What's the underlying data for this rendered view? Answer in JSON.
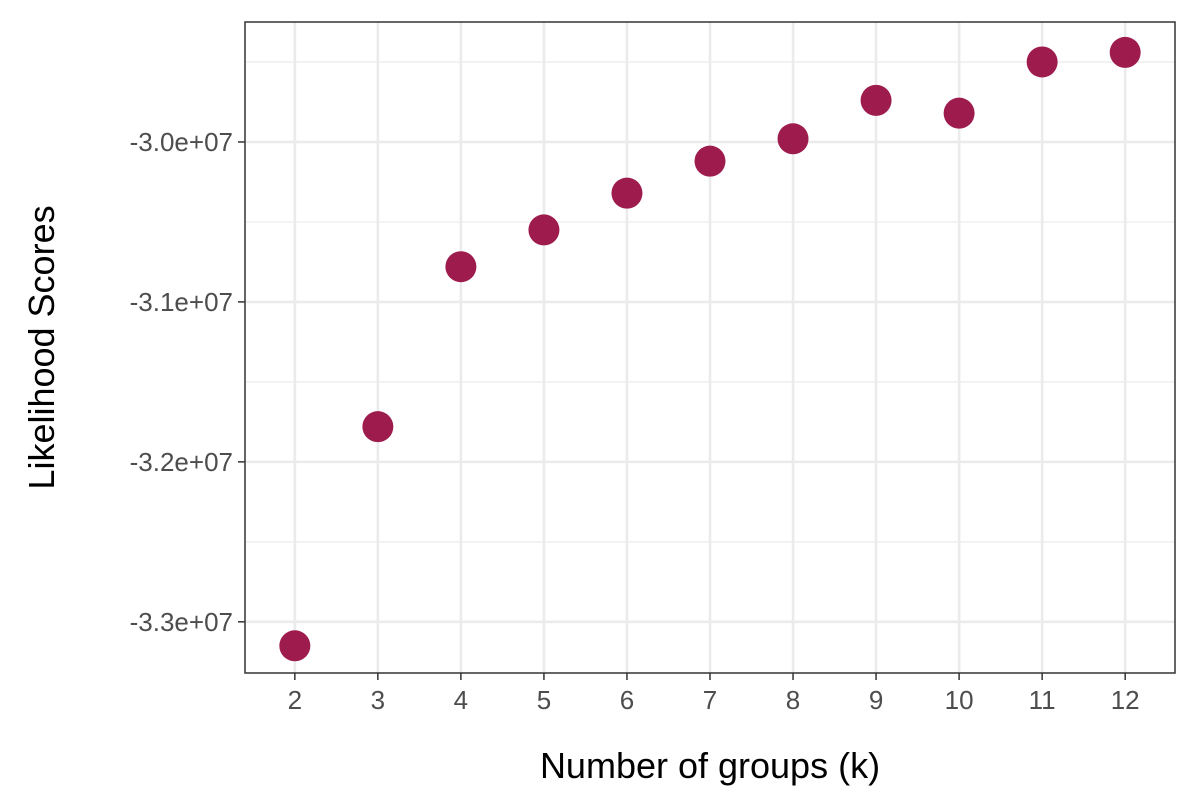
{
  "chart_data": {
    "type": "scatter",
    "title": "",
    "xlabel": "Number of groups (k)",
    "ylabel": "Likelihood Scores",
    "x": [
      2,
      3,
      4,
      5,
      6,
      7,
      8,
      9,
      10,
      11,
      12
    ],
    "y": [
      -33150000,
      -31780000,
      -30780000,
      -30550000,
      -30320000,
      -30120000,
      -29980000,
      -29740000,
      -29820000,
      -29500000,
      -29440000
    ],
    "xticks": [
      "2",
      "3",
      "4",
      "5",
      "6",
      "7",
      "8",
      "9",
      "10",
      "11",
      "12"
    ],
    "yticks": [
      {
        "value": -33000000,
        "label": "-3.3e+07"
      },
      {
        "value": -32000000,
        "label": "-3.2e+07"
      },
      {
        "value": -31000000,
        "label": "-3.1e+07"
      },
      {
        "value": -30000000,
        "label": "-3.0e+07"
      }
    ],
    "xlim": [
      1.4,
      12.6
    ],
    "ylim": [
      -33320000,
      -29250000
    ],
    "grid": true,
    "legend": "none",
    "colors": {
      "point": "#9e1b4d",
      "grid": "#ebebeb",
      "panel_border": "#333333"
    }
  }
}
